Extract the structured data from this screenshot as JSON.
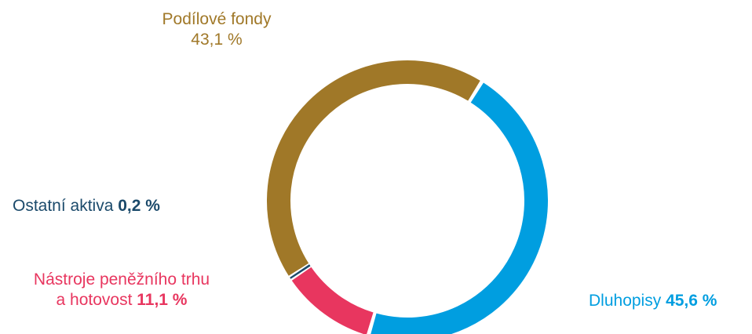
{
  "chart_data": {
    "type": "pie",
    "variant": "donut",
    "unit": "%",
    "slices": [
      {
        "name": "Dluhopisy",
        "value": 45.6,
        "label": "45,6 %",
        "color": "#009ee0"
      },
      {
        "name": "Nástroje peněžního trhu a hotovost",
        "label_line1": "Nástroje peněžního trhu",
        "label_line2": "a hotovost",
        "value": 11.1,
        "label": "11,1 %",
        "color": "#e8365f"
      },
      {
        "name": "Ostatní aktiva",
        "value": 0.2,
        "label": "0,2 %",
        "color": "#1b4a6b"
      },
      {
        "name": "Podílové fondy",
        "value": 43.1,
        "label": "43,1 %",
        "color": "#a07828"
      }
    ]
  }
}
